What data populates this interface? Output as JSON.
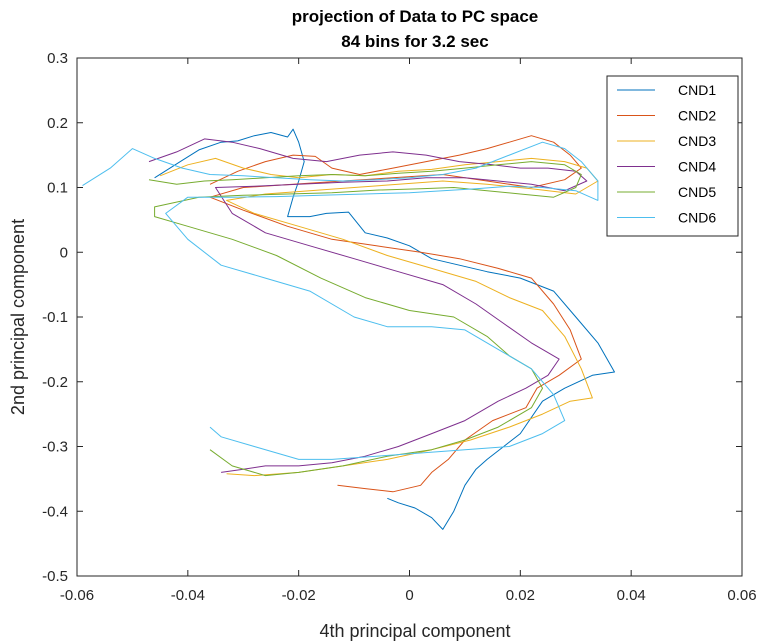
{
  "chart_data": {
    "type": "line",
    "title": "projection of Data to PC space",
    "subtitle": "84 bins for 3.2 sec",
    "xlabel": "4th principal component",
    "ylabel": "2nd principal component",
    "xlim": [
      -0.06,
      0.06
    ],
    "ylim": [
      -0.5,
      0.3
    ],
    "xticks": [
      -0.06,
      -0.04,
      -0.02,
      0,
      0.02,
      0.04,
      0.06
    ],
    "xtick_labels": [
      "-0.06",
      "-0.04",
      "-0.02",
      "0",
      "0.02",
      "0.04",
      "0.06"
    ],
    "yticks": [
      -0.5,
      -0.4,
      -0.3,
      -0.2,
      -0.1,
      0,
      0.1,
      0.2,
      0.3
    ],
    "ytick_labels": [
      "-0.5",
      "-0.4",
      "-0.3",
      "-0.2",
      "-0.1",
      "0",
      "0.1",
      "0.2",
      "0.3"
    ],
    "grid": false,
    "legend_position": "top-right",
    "series": [
      {
        "name": "CND1",
        "color": "#0072BD",
        "points": [
          [
            -0.046,
            0.115
          ],
          [
            -0.041,
            0.142
          ],
          [
            -0.038,
            0.158
          ],
          [
            -0.034,
            0.17
          ],
          [
            -0.031,
            0.172
          ],
          [
            -0.028,
            0.18
          ],
          [
            -0.025,
            0.185
          ],
          [
            -0.022,
            0.178
          ],
          [
            -0.021,
            0.19
          ],
          [
            -0.02,
            0.17
          ],
          [
            -0.019,
            0.14
          ],
          [
            -0.02,
            0.11
          ],
          [
            -0.021,
            0.085
          ],
          [
            -0.022,
            0.055
          ],
          [
            -0.018,
            0.055
          ],
          [
            -0.015,
            0.06
          ],
          [
            -0.011,
            0.062
          ],
          [
            -0.008,
            0.03
          ],
          [
            -0.004,
            0.022
          ],
          [
            0.0,
            0.01
          ],
          [
            0.004,
            -0.01
          ],
          [
            0.009,
            -0.02
          ],
          [
            0.014,
            -0.03
          ],
          [
            0.02,
            -0.04
          ],
          [
            0.026,
            -0.06
          ],
          [
            0.03,
            -0.1
          ],
          [
            0.034,
            -0.14
          ],
          [
            0.037,
            -0.185
          ],
          [
            0.033,
            -0.19
          ],
          [
            0.028,
            -0.21
          ],
          [
            0.024,
            -0.23
          ],
          [
            0.02,
            -0.28
          ],
          [
            0.017,
            -0.3
          ],
          [
            0.014,
            -0.32
          ],
          [
            0.012,
            -0.335
          ],
          [
            0.01,
            -0.36
          ],
          [
            0.008,
            -0.4
          ],
          [
            0.006,
            -0.428
          ],
          [
            0.004,
            -0.41
          ],
          [
            0.001,
            -0.395
          ],
          [
            -0.002,
            -0.387
          ],
          [
            -0.004,
            -0.38
          ]
        ]
      },
      {
        "name": "CND2",
        "color": "#D95319",
        "points": [
          [
            -0.036,
            0.105
          ],
          [
            -0.031,
            0.125
          ],
          [
            -0.026,
            0.14
          ],
          [
            -0.021,
            0.15
          ],
          [
            -0.017,
            0.148
          ],
          [
            -0.014,
            0.13
          ],
          [
            -0.009,
            0.12
          ],
          [
            -0.003,
            0.13
          ],
          [
            0.003,
            0.14
          ],
          [
            0.009,
            0.15
          ],
          [
            0.014,
            0.16
          ],
          [
            0.018,
            0.17
          ],
          [
            0.022,
            0.18
          ],
          [
            0.026,
            0.17
          ],
          [
            0.029,
            0.15
          ],
          [
            0.031,
            0.13
          ],
          [
            0.028,
            0.112
          ],
          [
            0.022,
            0.1
          ],
          [
            0.014,
            0.11
          ],
          [
            0.006,
            0.12
          ],
          [
            -0.003,
            0.115
          ],
          [
            -0.012,
            0.11
          ],
          [
            -0.021,
            0.105
          ],
          [
            -0.03,
            0.1
          ],
          [
            -0.036,
            0.085
          ],
          [
            -0.03,
            0.065
          ],
          [
            -0.022,
            0.04
          ],
          [
            -0.014,
            0.02
          ],
          [
            -0.006,
            0.01
          ],
          [
            0.002,
            0.0
          ],
          [
            0.009,
            -0.01
          ],
          [
            0.016,
            -0.025
          ],
          [
            0.022,
            -0.04
          ],
          [
            0.026,
            -0.08
          ],
          [
            0.029,
            -0.12
          ],
          [
            0.031,
            -0.165
          ],
          [
            0.027,
            -0.19
          ],
          [
            0.023,
            -0.21
          ],
          [
            0.021,
            -0.24
          ],
          [
            0.015,
            -0.26
          ],
          [
            0.01,
            -0.29
          ],
          [
            0.007,
            -0.32
          ],
          [
            0.004,
            -0.34
          ],
          [
            0.002,
            -0.36
          ],
          [
            -0.003,
            -0.37
          ],
          [
            -0.008,
            -0.365
          ],
          [
            -0.013,
            -0.36
          ]
        ]
      },
      {
        "name": "CND3",
        "color": "#EDB120",
        "points": [
          [
            -0.045,
            0.118
          ],
          [
            -0.04,
            0.135
          ],
          [
            -0.035,
            0.145
          ],
          [
            -0.03,
            0.13
          ],
          [
            -0.025,
            0.12
          ],
          [
            -0.02,
            0.115
          ],
          [
            -0.014,
            0.12
          ],
          [
            -0.008,
            0.118
          ],
          [
            -0.002,
            0.125
          ],
          [
            0.004,
            0.128
          ],
          [
            0.01,
            0.135
          ],
          [
            0.016,
            0.14
          ],
          [
            0.022,
            0.145
          ],
          [
            0.028,
            0.14
          ],
          [
            0.032,
            0.13
          ],
          [
            0.034,
            0.11
          ],
          [
            0.03,
            0.09
          ],
          [
            0.022,
            0.098
          ],
          [
            0.014,
            0.105
          ],
          [
            0.006,
            0.11
          ],
          [
            -0.002,
            0.105
          ],
          [
            -0.01,
            0.1
          ],
          [
            -0.018,
            0.095
          ],
          [
            -0.026,
            0.09
          ],
          [
            -0.033,
            0.08
          ],
          [
            -0.028,
            0.06
          ],
          [
            -0.02,
            0.04
          ],
          [
            -0.012,
            0.02
          ],
          [
            -0.004,
            -0.005
          ],
          [
            0.004,
            -0.025
          ],
          [
            0.012,
            -0.045
          ],
          [
            0.018,
            -0.07
          ],
          [
            0.024,
            -0.09
          ],
          [
            0.028,
            -0.13
          ],
          [
            0.031,
            -0.18
          ],
          [
            0.033,
            -0.225
          ],
          [
            0.029,
            -0.23
          ],
          [
            0.024,
            -0.25
          ],
          [
            0.018,
            -0.27
          ],
          [
            0.011,
            -0.29
          ],
          [
            0.004,
            -0.305
          ],
          [
            -0.004,
            -0.32
          ],
          [
            -0.012,
            -0.33
          ],
          [
            -0.02,
            -0.34
          ],
          [
            -0.028,
            -0.345
          ],
          [
            -0.033,
            -0.342
          ]
        ]
      },
      {
        "name": "CND4",
        "color": "#7E2F8E",
        "points": [
          [
            -0.047,
            0.14
          ],
          [
            -0.042,
            0.155
          ],
          [
            -0.037,
            0.175
          ],
          [
            -0.032,
            0.17
          ],
          [
            -0.027,
            0.16
          ],
          [
            -0.021,
            0.145
          ],
          [
            -0.015,
            0.14
          ],
          [
            -0.009,
            0.15
          ],
          [
            -0.003,
            0.155
          ],
          [
            0.003,
            0.15
          ],
          [
            0.009,
            0.14
          ],
          [
            0.015,
            0.135
          ],
          [
            0.02,
            0.13
          ],
          [
            0.025,
            0.13
          ],
          [
            0.03,
            0.125
          ],
          [
            0.032,
            0.11
          ],
          [
            0.028,
            0.095
          ],
          [
            0.022,
            0.105
          ],
          [
            0.016,
            0.11
          ],
          [
            0.01,
            0.115
          ],
          [
            0.003,
            0.115
          ],
          [
            -0.004,
            0.11
          ],
          [
            -0.012,
            0.108
          ],
          [
            -0.02,
            0.105
          ],
          [
            -0.028,
            0.102
          ],
          [
            -0.035,
            0.1
          ],
          [
            -0.032,
            0.06
          ],
          [
            -0.026,
            0.03
          ],
          [
            -0.018,
            0.01
          ],
          [
            -0.01,
            -0.01
          ],
          [
            -0.002,
            -0.03
          ],
          [
            0.006,
            -0.05
          ],
          [
            0.012,
            -0.08
          ],
          [
            0.017,
            -0.11
          ],
          [
            0.022,
            -0.14
          ],
          [
            0.027,
            -0.165
          ],
          [
            0.025,
            -0.19
          ],
          [
            0.021,
            -0.21
          ],
          [
            0.016,
            -0.23
          ],
          [
            0.01,
            -0.26
          ],
          [
            0.004,
            -0.28
          ],
          [
            -0.002,
            -0.3
          ],
          [
            -0.008,
            -0.315
          ],
          [
            -0.014,
            -0.325
          ],
          [
            -0.02,
            -0.33
          ],
          [
            -0.026,
            -0.33
          ],
          [
            -0.03,
            -0.335
          ],
          [
            -0.034,
            -0.34
          ]
        ]
      },
      {
        "name": "CND5",
        "color": "#77AC30",
        "points": [
          [
            -0.047,
            0.112
          ],
          [
            -0.042,
            0.105
          ],
          [
            -0.037,
            0.11
          ],
          [
            -0.032,
            0.112
          ],
          [
            -0.026,
            0.115
          ],
          [
            -0.02,
            0.118
          ],
          [
            -0.014,
            0.12
          ],
          [
            -0.008,
            0.118
          ],
          [
            -0.002,
            0.122
          ],
          [
            0.004,
            0.125
          ],
          [
            0.01,
            0.13
          ],
          [
            0.016,
            0.135
          ],
          [
            0.022,
            0.14
          ],
          [
            0.028,
            0.135
          ],
          [
            0.031,
            0.12
          ],
          [
            0.03,
            0.1
          ],
          [
            0.026,
            0.085
          ],
          [
            0.02,
            0.09
          ],
          [
            0.014,
            0.095
          ],
          [
            0.008,
            0.1
          ],
          [
            0.002,
            0.098
          ],
          [
            -0.006,
            0.096
          ],
          [
            -0.014,
            0.092
          ],
          [
            -0.022,
            0.09
          ],
          [
            -0.03,
            0.088
          ],
          [
            -0.038,
            0.085
          ],
          [
            -0.046,
            0.07
          ],
          [
            -0.046,
            0.055
          ],
          [
            -0.04,
            0.04
          ],
          [
            -0.032,
            0.02
          ],
          [
            -0.024,
            -0.005
          ],
          [
            -0.016,
            -0.04
          ],
          [
            -0.008,
            -0.07
          ],
          [
            0.0,
            -0.09
          ],
          [
            0.008,
            -0.1
          ],
          [
            0.014,
            -0.13
          ],
          [
            0.018,
            -0.16
          ],
          [
            0.022,
            -0.18
          ],
          [
            0.024,
            -0.21
          ],
          [
            0.022,
            -0.24
          ],
          [
            0.016,
            -0.27
          ],
          [
            0.01,
            -0.29
          ],
          [
            0.004,
            -0.305
          ],
          [
            -0.004,
            -0.315
          ],
          [
            -0.012,
            -0.33
          ],
          [
            -0.02,
            -0.34
          ],
          [
            -0.026,
            -0.345
          ],
          [
            -0.032,
            -0.33
          ],
          [
            -0.036,
            -0.305
          ]
        ]
      },
      {
        "name": "CND6",
        "color": "#4DBEEE",
        "points": [
          [
            -0.059,
            0.103
          ],
          [
            -0.054,
            0.13
          ],
          [
            -0.05,
            0.16
          ],
          [
            -0.046,
            0.145
          ],
          [
            -0.041,
            0.13
          ],
          [
            -0.036,
            0.12
          ],
          [
            -0.03,
            0.118
          ],
          [
            -0.024,
            0.115
          ],
          [
            -0.018,
            0.112
          ],
          [
            -0.012,
            0.11
          ],
          [
            -0.006,
            0.112
          ],
          [
            0.0,
            0.115
          ],
          [
            0.006,
            0.12
          ],
          [
            0.012,
            0.13
          ],
          [
            0.018,
            0.15
          ],
          [
            0.024,
            0.17
          ],
          [
            0.028,
            0.16
          ],
          [
            0.031,
            0.14
          ],
          [
            0.034,
            0.11
          ],
          [
            0.034,
            0.08
          ],
          [
            0.03,
            0.095
          ],
          [
            0.024,
            0.1
          ],
          [
            0.018,
            0.102
          ],
          [
            0.012,
            0.098
          ],
          [
            0.006,
            0.095
          ],
          [
            0.0,
            0.092
          ],
          [
            -0.008,
            0.09
          ],
          [
            -0.016,
            0.088
          ],
          [
            -0.024,
            0.086
          ],
          [
            -0.032,
            0.085
          ],
          [
            -0.04,
            0.085
          ],
          [
            -0.044,
            0.06
          ],
          [
            -0.04,
            0.02
          ],
          [
            -0.034,
            -0.02
          ],
          [
            -0.026,
            -0.04
          ],
          [
            -0.018,
            -0.06
          ],
          [
            -0.01,
            -0.1
          ],
          [
            -0.004,
            -0.115
          ],
          [
            0.004,
            -0.115
          ],
          [
            0.01,
            -0.12
          ],
          [
            0.016,
            -0.15
          ],
          [
            0.022,
            -0.18
          ],
          [
            0.026,
            -0.22
          ],
          [
            0.028,
            -0.26
          ],
          [
            0.024,
            -0.28
          ],
          [
            0.018,
            -0.3
          ],
          [
            0.01,
            -0.305
          ],
          [
            0.002,
            -0.31
          ],
          [
            -0.006,
            -0.315
          ],
          [
            -0.014,
            -0.32
          ],
          [
            -0.02,
            -0.32
          ],
          [
            -0.028,
            -0.3
          ],
          [
            -0.034,
            -0.285
          ],
          [
            -0.036,
            -0.27
          ]
        ]
      }
    ]
  }
}
